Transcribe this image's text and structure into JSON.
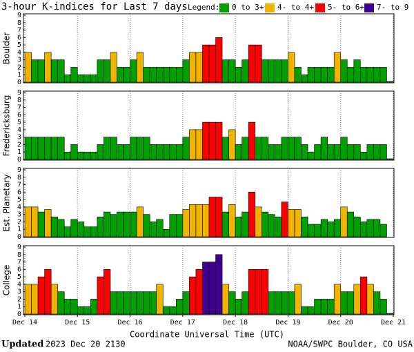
{
  "header": {
    "title": "3-hour K-indices for Last 7 days",
    "legend_title": "Legend:",
    "legend": [
      {
        "label": "0 to 3+",
        "color": "#00a000"
      },
      {
        "label": "4- to 4+",
        "color": "#f0b400"
      },
      {
        "label": "5- to 6+",
        "color": "#ff0000"
      },
      {
        "label": "7- to 9",
        "color": "#400090"
      }
    ]
  },
  "chart_data": [
    {
      "type": "bar",
      "ylabel": "Boulder",
      "ylim": [
        0,
        9
      ],
      "yticks": [
        0,
        1,
        2,
        3,
        4,
        5,
        6,
        7,
        8,
        9
      ],
      "values": [
        4,
        3,
        3,
        4,
        3,
        3,
        1,
        2,
        1,
        1,
        1,
        3,
        3,
        4,
        2,
        2,
        3,
        4,
        2,
        2,
        2,
        2,
        2,
        2,
        3,
        4,
        4,
        5,
        5,
        6,
        3,
        3,
        2,
        3,
        5,
        5,
        3,
        3,
        3,
        3,
        4,
        2,
        1,
        2,
        2,
        2,
        2,
        4,
        3,
        2,
        3,
        2,
        2,
        2,
        2,
        0
      ],
      "colors": [
        "#f0b400",
        "#00a000",
        "#00a000",
        "#f0b400",
        "#00a000",
        "#00a000",
        "#00a000",
        "#00a000",
        "#00a000",
        "#00a000",
        "#00a000",
        "#00a000",
        "#00a000",
        "#f0b400",
        "#00a000",
        "#00a000",
        "#00a000",
        "#f0b400",
        "#00a000",
        "#00a000",
        "#00a000",
        "#00a000",
        "#00a000",
        "#00a000",
        "#00a000",
        "#f0b400",
        "#f0b400",
        "#ff0000",
        "#ff0000",
        "#ff0000",
        "#00a000",
        "#00a000",
        "#00a000",
        "#00a000",
        "#ff0000",
        "#ff0000",
        "#00a000",
        "#00a000",
        "#00a000",
        "#00a000",
        "#f0b400",
        "#00a000",
        "#00a000",
        "#00a000",
        "#00a000",
        "#00a000",
        "#00a000",
        "#f0b400",
        "#00a000",
        "#00a000",
        "#00a000",
        "#00a000",
        "#00a000",
        "#00a000",
        "#00a000",
        "#00a000"
      ]
    },
    {
      "type": "bar",
      "ylabel": "Fredericksburg",
      "ylim": [
        0,
        9
      ],
      "yticks": [
        0,
        1,
        2,
        3,
        4,
        5,
        6,
        7,
        8,
        9
      ],
      "values": [
        3,
        3,
        3,
        3,
        3,
        3,
        1,
        2,
        1,
        1,
        1,
        2,
        3,
        3,
        2,
        2,
        3,
        3,
        3,
        2,
        2,
        2,
        2,
        2,
        3,
        4,
        4,
        5,
        5,
        5,
        3,
        4,
        2,
        3,
        5,
        3,
        3,
        2,
        2,
        3,
        3,
        3,
        2,
        1,
        2,
        3,
        2,
        2,
        3,
        2,
        2,
        1,
        2,
        2,
        2,
        0
      ],
      "colors": [
        "#00a000",
        "#00a000",
        "#00a000",
        "#00a000",
        "#00a000",
        "#00a000",
        "#00a000",
        "#00a000",
        "#00a000",
        "#00a000",
        "#00a000",
        "#00a000",
        "#00a000",
        "#00a000",
        "#00a000",
        "#00a000",
        "#00a000",
        "#00a000",
        "#00a000",
        "#00a000",
        "#00a000",
        "#00a000",
        "#00a000",
        "#00a000",
        "#00a000",
        "#f0b400",
        "#f0b400",
        "#ff0000",
        "#ff0000",
        "#ff0000",
        "#00a000",
        "#f0b400",
        "#00a000",
        "#00a000",
        "#ff0000",
        "#00a000",
        "#00a000",
        "#00a000",
        "#00a000",
        "#00a000",
        "#00a000",
        "#00a000",
        "#00a000",
        "#00a000",
        "#00a000",
        "#00a000",
        "#00a000",
        "#00a000",
        "#00a000",
        "#00a000",
        "#00a000",
        "#00a000",
        "#00a000",
        "#00a000",
        "#00a000",
        "#00a000"
      ]
    },
    {
      "type": "bar",
      "ylabel": "Est. Planetary",
      "ylim": [
        0,
        9
      ],
      "yticks": [
        0,
        1,
        2,
        3,
        4,
        5,
        6,
        7,
        8,
        9
      ],
      "values": [
        4,
        4,
        3.33,
        3.67,
        2.67,
        2.33,
        1.33,
        2.33,
        2,
        1.33,
        1.33,
        2.67,
        3.33,
        3,
        3.33,
        3.33,
        3.33,
        4,
        3,
        2,
        2.33,
        1,
        3,
        3,
        3.67,
        4.33,
        4.33,
        4.33,
        5.33,
        5.33,
        3.33,
        4.33,
        2.67,
        3.33,
        6,
        4,
        3.33,
        3,
        2.67,
        4.67,
        3.67,
        3.67,
        2.67,
        1.67,
        1.67,
        2.33,
        2,
        2.33,
        4,
        3.33,
        2.67,
        2,
        2.33,
        2.33,
        1.67,
        null
      ],
      "colors": [
        "#f0b400",
        "#f0b400",
        "#00a000",
        "#f0b400",
        "#00a000",
        "#00a000",
        "#00a000",
        "#00a000",
        "#00a000",
        "#00a000",
        "#00a000",
        "#00a000",
        "#00a000",
        "#00a000",
        "#00a000",
        "#00a000",
        "#00a000",
        "#f0b400",
        "#00a000",
        "#00a000",
        "#00a000",
        "#00a000",
        "#00a000",
        "#00a000",
        "#f0b400",
        "#f0b400",
        "#f0b400",
        "#f0b400",
        "#ff0000",
        "#ff0000",
        "#00a000",
        "#f0b400",
        "#00a000",
        "#00a000",
        "#ff0000",
        "#f0b400",
        "#00a000",
        "#00a000",
        "#00a000",
        "#ff0000",
        "#f0b400",
        "#f0b400",
        "#00a000",
        "#00a000",
        "#00a000",
        "#00a000",
        "#00a000",
        "#00a000",
        "#f0b400",
        "#00a000",
        "#00a000",
        "#00a000",
        "#00a000",
        "#00a000",
        "#00a000",
        null
      ]
    },
    {
      "type": "bar",
      "ylabel": "College",
      "ylim": [
        0,
        9
      ],
      "yticks": [
        0,
        1,
        2,
        3,
        4,
        5,
        6,
        7,
        8,
        9
      ],
      "values": [
        4,
        4,
        5,
        6,
        4,
        3,
        2,
        2,
        1,
        1,
        2,
        5,
        6,
        3,
        3,
        3,
        3,
        3,
        3,
        3,
        4,
        1,
        1,
        2,
        3,
        5,
        6,
        7,
        7,
        8,
        4,
        3,
        2,
        3,
        6,
        6,
        6,
        3,
        3,
        3,
        3,
        4,
        1,
        1,
        2,
        2,
        2,
        4,
        3,
        3,
        4,
        5,
        4,
        3,
        2,
        0
      ],
      "colors": [
        "#f0b400",
        "#f0b400",
        "#ff0000",
        "#ff0000",
        "#f0b400",
        "#00a000",
        "#00a000",
        "#00a000",
        "#00a000",
        "#00a000",
        "#00a000",
        "#ff0000",
        "#ff0000",
        "#00a000",
        "#00a000",
        "#00a000",
        "#00a000",
        "#00a000",
        "#00a000",
        "#00a000",
        "#f0b400",
        "#00a000",
        "#00a000",
        "#00a000",
        "#00a000",
        "#ff0000",
        "#ff0000",
        "#400090",
        "#400090",
        "#400090",
        "#f0b400",
        "#00a000",
        "#00a000",
        "#00a000",
        "#ff0000",
        "#ff0000",
        "#ff0000",
        "#00a000",
        "#00a000",
        "#00a000",
        "#00a000",
        "#f0b400",
        "#00a000",
        "#00a000",
        "#00a000",
        "#00a000",
        "#00a000",
        "#f0b400",
        "#00a000",
        "#00a000",
        "#f0b400",
        "#ff0000",
        "#f0b400",
        "#00a000",
        "#00a000",
        "#00a000"
      ],
      "xlabel": "Coordinate Universal Time (UTC)",
      "xlim": [
        0,
        7
      ],
      "xticks": [
        {
          "value": 0,
          "label": "Dec 14"
        },
        {
          "value": 1,
          "label": "Dec 15"
        },
        {
          "value": 2,
          "label": "Dec 16"
        },
        {
          "value": 3,
          "label": "Dec 17"
        },
        {
          "value": 4,
          "label": "Dec 18"
        },
        {
          "value": 5,
          "label": "Dec 19"
        },
        {
          "value": 6,
          "label": "Dec 20"
        },
        {
          "value": 7,
          "label": "Dec 21"
        }
      ]
    }
  ],
  "footer": {
    "updated_label": "Updated",
    "updated": "2023 Dec 20 2130",
    "credit": "NOAA/SWPC Boulder, CO USA"
  }
}
